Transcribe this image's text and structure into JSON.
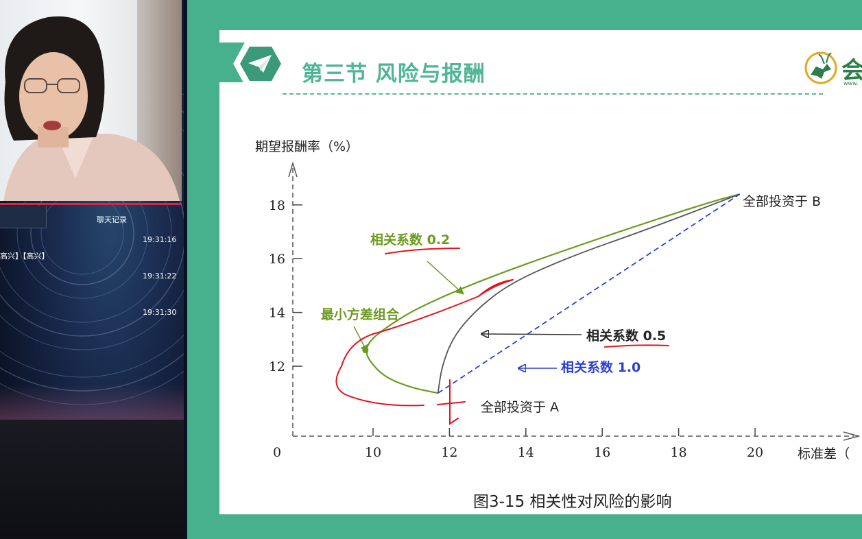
{
  "stream": {
    "chat_title": "聊天记录",
    "chat_messages": [
      {
        "time": "19:31:16",
        "text": "高兴】【高兴】"
      },
      {
        "time": "19:31:22",
        "text": ""
      },
      {
        "time": "19:31:30",
        "text": ""
      }
    ]
  },
  "slide": {
    "section_title": "第三节 风险与报酬",
    "logo_text": "会",
    "logo_url_fragment": "www.",
    "caption": "图3-15  相关性对风险的影响"
  },
  "colors": {
    "slide_frame": "#47b08d",
    "title": "#4fb595",
    "curve_02": "#6c9a1e",
    "curve_05": "#555555",
    "line_10": "#2b3fd6",
    "annotation_red": "#e0141e"
  },
  "chart_data": {
    "type": "line",
    "ylabel": "期望报酬率（%）",
    "xlabel": "标准差（",
    "x_ticks": [
      "0",
      "10",
      "12",
      "14",
      "16",
      "18",
      "20"
    ],
    "y_ticks": [
      "12",
      "14",
      "16",
      "18"
    ],
    "xlim": [
      7.9,
      22.8
    ],
    "ylim": [
      9.4,
      19.5
    ],
    "series": [
      {
        "name": "相关系数 0.2",
        "style": "solid",
        "points": [
          [
            11.7,
            11.0
          ],
          [
            11.0,
            11.2
          ],
          [
            10.3,
            11.6
          ],
          [
            9.9,
            12.2
          ],
          [
            9.8,
            12.6
          ],
          [
            9.95,
            13.0
          ],
          [
            10.4,
            13.5
          ],
          [
            11.2,
            14.2
          ],
          [
            13.0,
            15.3
          ],
          [
            16.0,
            16.8
          ],
          [
            18.8,
            18.1
          ],
          [
            19.6,
            18.4
          ]
        ]
      },
      {
        "name": "相关系数 0.5",
        "style": "solid",
        "points": [
          [
            11.7,
            11.0
          ],
          [
            11.8,
            12.0
          ],
          [
            12.1,
            13.1
          ],
          [
            12.7,
            14.1
          ],
          [
            13.6,
            15.1
          ],
          [
            15.2,
            16.1
          ],
          [
            17.2,
            17.1
          ],
          [
            19.6,
            18.4
          ]
        ]
      },
      {
        "name": "相关系数 1.0",
        "style": "dashed",
        "points": [
          [
            11.7,
            11.0
          ],
          [
            19.6,
            18.4
          ]
        ]
      }
    ],
    "special_points": [
      {
        "label": "最小方差组合",
        "x": 9.8,
        "y": 12.6
      }
    ],
    "endpoint_labels": [
      "全部投资于 B",
      "全部投资于 A"
    ],
    "series_labels": [
      "相关系数 0.2",
      "相关系数 0.5",
      "相关系数 1.0"
    ]
  }
}
